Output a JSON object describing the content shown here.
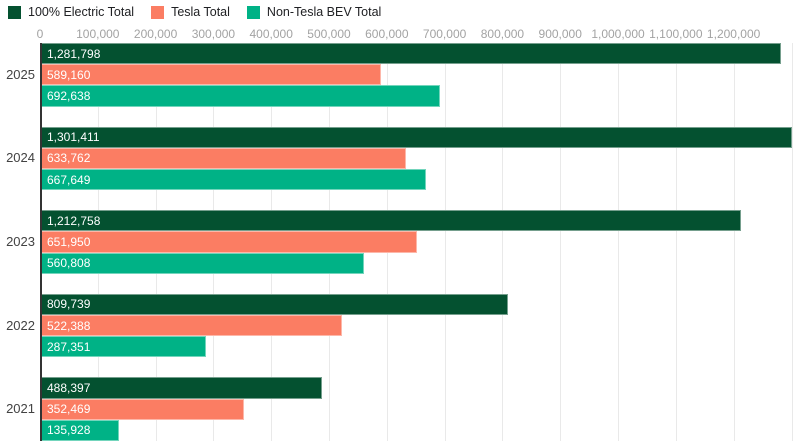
{
  "chart_data": {
    "type": "bar",
    "orientation": "horizontal",
    "title": "",
    "categories": [
      "2025",
      "2024",
      "2023",
      "2022",
      "2021"
    ],
    "series": [
      {
        "name": "100% Electric Total",
        "color": "#045130",
        "values": [
          1281798,
          1301411,
          1212758,
          809739,
          488397
        ],
        "labels": [
          "1,281,798",
          "1,301,411",
          "1,212,758",
          "809,739",
          "488,397"
        ]
      },
      {
        "name": "Tesla Total",
        "color": "#fb7d63",
        "values": [
          589160,
          633762,
          651950,
          522388,
          352469
        ],
        "labels": [
          "589,160",
          "633,762",
          "651,950",
          "522,388",
          "352,469"
        ]
      },
      {
        "name": "Non-Tesla BEV Total",
        "color": "#00b286",
        "values": [
          692638,
          667649,
          560808,
          287351,
          135928
        ],
        "labels": [
          "692,638",
          "667,649",
          "560,808",
          "287,351",
          "135,928"
        ]
      }
    ],
    "x_ticks": [
      "0",
      "100,000",
      "200,000",
      "300,000",
      "400,000",
      "500,000",
      "600,000",
      "700,000",
      "800,000",
      "900,000",
      "1,000,000",
      "1,100,000",
      "1,200,000"
    ],
    "x_tick_values": [
      0,
      100000,
      200000,
      300000,
      400000,
      500000,
      600000,
      700000,
      800000,
      900000,
      1000000,
      1100000,
      1200000
    ],
    "axis_max": 1302700,
    "grid": true,
    "legend_position": "top-left",
    "bar_value_label_color": "#ffffff",
    "tick_label_color": "#a3a3a3",
    "category_label_color": "#424242",
    "gridline_color": "#e9e9e9",
    "baseline_color": "#333333",
    "background_color": "#ffffff"
  }
}
